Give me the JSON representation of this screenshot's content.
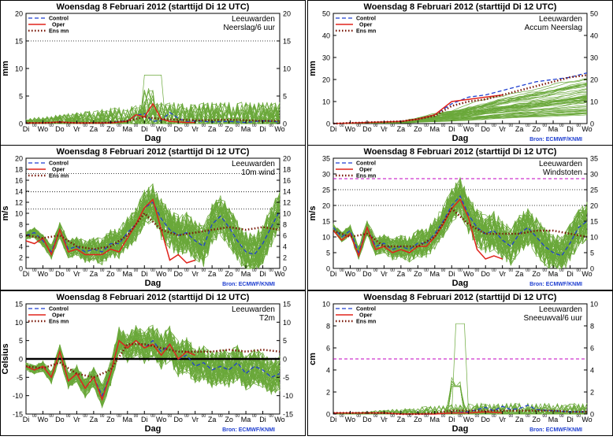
{
  "header_title": "Woensdag  8 Februari 2012  (starttijd  Di 12 UTC)",
  "days": [
    "Di",
    "Wo",
    "Do",
    "Vr",
    "Za",
    "Zo",
    "Ma",
    "Di",
    "Wo",
    "Do",
    "Vr",
    "Za",
    "Zo",
    "Ma",
    "Di",
    "Wo"
  ],
  "xlabel": "Dag",
  "credit": "Bron: ECMWF/KNMI",
  "legend": {
    "control": "Control",
    "oper": "Oper",
    "ensmn": "Ens mn"
  },
  "colors": {
    "control": "#1f3fd0",
    "oper": "#e0241c",
    "ensmn": "#7a1a0a",
    "members": "#6aa83a",
    "threshold": "#c000c0",
    "credit": "#1f3fd0"
  },
  "chart_data": [
    {
      "id": "neerslag",
      "type": "line",
      "title": "Woensdag  8 Februari 2012  (starttijd  Di 12 UTC)",
      "location": "Leeuwarden",
      "variable": "Neerslag/6 uur",
      "ylabel": "mm",
      "ylim": [
        0,
        20
      ],
      "yticks": [
        0,
        5,
        10,
        15,
        20
      ],
      "rticks": [
        0,
        5,
        10,
        15,
        20
      ],
      "dotted_lines": [
        15
      ],
      "dashed_magenta": [],
      "zero_line": false,
      "show_credit": false,
      "x_days": 15,
      "members": 50,
      "member_spread": 3,
      "member_kind": "precip",
      "member_base": 0,
      "series": [
        {
          "name": "Control",
          "x": [
            0,
            1,
            2,
            3,
            4,
            5,
            6,
            6.5,
            7,
            7.5,
            8,
            8.5,
            9,
            9.5,
            10,
            11,
            12,
            13,
            14,
            15
          ],
          "values": [
            0.1,
            0.1,
            0.3,
            0.1,
            0.1,
            0.2,
            0.5,
            1.5,
            1.8,
            0.4,
            0.6,
            2.0,
            1.0,
            0.3,
            0.5,
            0.3,
            0.4,
            0.2,
            0.5,
            0.3
          ]
        },
        {
          "name": "Oper",
          "x": [
            0,
            1,
            2,
            3,
            4,
            5,
            6,
            6.5,
            7,
            7.5,
            8,
            8.5,
            9,
            9.5,
            10
          ],
          "values": [
            0.1,
            0.1,
            0.3,
            0.1,
            0.1,
            0.1,
            0.4,
            1.6,
            1.2,
            3.6,
            0.8,
            0.4,
            0.3,
            0.2,
            0.2
          ]
        },
        {
          "name": "Ens mn",
          "x": [
            0,
            1,
            2,
            3,
            4,
            5,
            6,
            7,
            8,
            9,
            10,
            11,
            12,
            13,
            14,
            15
          ],
          "values": [
            0.1,
            0.1,
            0.2,
            0.1,
            0.1,
            0.2,
            0.5,
            1.2,
            0.8,
            0.7,
            0.6,
            0.6,
            0.7,
            0.6,
            0.5,
            0.5
          ]
        }
      ]
    },
    {
      "id": "accum",
      "type": "line",
      "title": "Woensdag  8 Februari 2012  (starttijd  Di 12 UTC)",
      "location": "Leeuwarden",
      "variable": "Accum Neerslag",
      "ylabel": "mm",
      "ylim": [
        0,
        50
      ],
      "yticks": [
        0,
        10,
        20,
        30,
        40,
        50
      ],
      "rticks": [
        0,
        10,
        20,
        30,
        40,
        50
      ],
      "dotted_lines": [],
      "dashed_magenta": [],
      "zero_line": false,
      "show_credit": true,
      "x_days": 15,
      "members": 50,
      "member_spread": 10,
      "member_kind": "accum",
      "member_base": 0,
      "series": [
        {
          "name": "Control",
          "x": [
            0,
            2,
            4,
            5,
            6,
            7,
            8,
            9,
            10,
            11,
            12,
            13,
            14,
            15
          ],
          "values": [
            0,
            0.5,
            1,
            2,
            4,
            9,
            12,
            13,
            15,
            17,
            19,
            20,
            21,
            23
          ]
        },
        {
          "name": "Oper",
          "x": [
            0,
            2,
            4,
            5,
            6,
            7,
            8,
            9,
            10
          ],
          "values": [
            0,
            0.5,
            1,
            2,
            4,
            10,
            11,
            12,
            13
          ]
        },
        {
          "name": "Ens mn",
          "x": [
            0,
            2,
            4,
            5,
            6,
            7,
            8,
            9,
            10,
            11,
            12,
            13,
            14,
            15
          ],
          "values": [
            0,
            0.5,
            1,
            2,
            3.5,
            8,
            10,
            11,
            13,
            15,
            17,
            19,
            21,
            22
          ]
        }
      ]
    },
    {
      "id": "wind",
      "type": "line",
      "title": "Woensdag  8 Februari 2012  (starttijd  Di 12 UTC)",
      "location": "Leeuwarden",
      "variable": "10m wind",
      "ylabel": "m/s",
      "ylim": [
        0,
        20
      ],
      "yticks": [
        0,
        2,
        4,
        6,
        8,
        10,
        12,
        14,
        16,
        18,
        20
      ],
      "rticks": [
        0,
        2,
        4,
        6,
        8,
        10,
        12,
        14,
        16,
        18,
        20
      ],
      "dotted_lines": [
        10.8,
        13.9,
        17.2
      ],
      "dashed_magenta": [],
      "zero_line": false,
      "show_credit": true,
      "x_days": 15,
      "members": 50,
      "member_spread": 3,
      "member_kind": "level",
      "member_base": 0,
      "series": [
        {
          "name": "Control",
          "x": [
            0,
            0.5,
            1,
            1.5,
            2,
            2.5,
            3,
            3.5,
            4,
            4.5,
            5,
            5.5,
            6,
            6.5,
            7,
            7.5,
            8,
            8.5,
            9,
            9.5,
            10,
            10.5,
            11,
            11.5,
            12,
            12.5,
            13,
            13.5,
            14,
            14.5,
            15
          ],
          "values": [
            6,
            6.5,
            5,
            3,
            7,
            3.5,
            4,
            3,
            3.5,
            3,
            4.5,
            4.5,
            6.5,
            8,
            11,
            12,
            9,
            7,
            6,
            6.5,
            5,
            4,
            8,
            9.5,
            7.5,
            5,
            3,
            2.5,
            4.5,
            7.5,
            10.5
          ]
        },
        {
          "name": "Oper",
          "x": [
            0,
            0.5,
            1,
            1.5,
            2,
            2.5,
            3,
            3.5,
            4,
            4.5,
            5,
            5.5,
            6,
            6.5,
            7,
            7.5,
            8,
            8.5,
            9,
            9.5,
            10
          ],
          "values": [
            5,
            4.5,
            5.5,
            2.5,
            7,
            3,
            3.5,
            2.5,
            2.5,
            2.5,
            3.5,
            3,
            5.5,
            8,
            11,
            12.5,
            7,
            1.5,
            2.5,
            1,
            1.5
          ]
        },
        {
          "name": "Ens mn",
          "x": [
            0,
            1,
            2,
            3,
            4,
            5,
            6,
            7,
            8,
            9,
            10,
            11,
            12,
            13,
            14,
            15
          ],
          "values": [
            6,
            5.5,
            6,
            4,
            3.5,
            4,
            6,
            10,
            7,
            6,
            6.5,
            7,
            7.5,
            7,
            7.5,
            7
          ]
        }
      ]
    },
    {
      "id": "windstoten",
      "type": "line",
      "title": "Woensdag  8 Februari 2012  (starttijd  Di 12 UTC)",
      "location": "Leeuwarden",
      "variable": "Windstoten",
      "ylabel": "m/s",
      "ylim": [
        0,
        35
      ],
      "yticks": [
        0,
        5,
        10,
        15,
        20,
        25,
        30,
        35
      ],
      "rticks": [
        0,
        5,
        10,
        15,
        20,
        25,
        30,
        35
      ],
      "dotted_lines": [
        20,
        25
      ],
      "dashed_magenta": [
        28.5
      ],
      "zero_line": false,
      "show_credit": true,
      "x_days": 15,
      "members": 50,
      "member_spread": 5,
      "member_kind": "level",
      "member_base": 0,
      "series": [
        {
          "name": "Control",
          "x": [
            0,
            0.5,
            1,
            1.5,
            2,
            2.5,
            3,
            3.5,
            4,
            4.5,
            5,
            5.5,
            6,
            6.5,
            7,
            7.5,
            8,
            8.5,
            9,
            9.5,
            10,
            10.5,
            11,
            11.5,
            12,
            12.5,
            13,
            13.5,
            14,
            14.5,
            15
          ],
          "values": [
            13,
            10,
            12,
            5,
            13,
            7,
            8,
            6,
            7,
            6,
            8,
            8,
            11,
            15,
            20,
            23,
            17,
            13,
            11,
            12,
            9,
            7,
            11,
            13,
            10,
            7,
            5,
            4,
            8,
            13,
            15
          ]
        },
        {
          "name": "Oper",
          "x": [
            0,
            0.5,
            1,
            1.5,
            2,
            2.5,
            3,
            3.5,
            4,
            4.5,
            5,
            5.5,
            6,
            6.5,
            7,
            7.5,
            8,
            8.5,
            9,
            9.5,
            10
          ],
          "values": [
            12,
            9,
            11,
            4,
            13,
            6,
            7,
            5,
            6,
            5,
            7,
            7,
            10,
            14,
            19,
            22,
            16,
            6,
            3,
            4,
            3
          ]
        },
        {
          "name": "Ens mn",
          "x": [
            0,
            1,
            2,
            3,
            4,
            5,
            6,
            7,
            8,
            9,
            10,
            11,
            12,
            13,
            14,
            15
          ],
          "values": [
            12,
            10,
            11,
            7,
            7,
            7,
            10,
            19,
            14,
            11,
            11,
            11,
            12,
            12,
            11,
            10
          ]
        }
      ]
    },
    {
      "id": "t2m",
      "type": "line",
      "title": "Woensdag  8 Februari 2012  (starttijd  Di 12 UTC)",
      "location": "Leeuwarden",
      "variable": "T2m",
      "ylabel": "Celsius",
      "ylim": [
        -15,
        15
      ],
      "yticks": [
        -15,
        -10,
        -5,
        0,
        5,
        10,
        15
      ],
      "rticks": [
        -15,
        -10,
        -5,
        0,
        5,
        10,
        15
      ],
      "dotted_lines": [],
      "dashed_magenta": [],
      "zero_line": true,
      "show_credit": true,
      "x_days": 15,
      "members": 50,
      "member_spread": 4,
      "member_kind": "level",
      "member_base": 0,
      "series": [
        {
          "name": "Control",
          "x": [
            0,
            0.5,
            1,
            1.5,
            2,
            2.5,
            3,
            3.5,
            4,
            4.5,
            5,
            5.5,
            6,
            6.5,
            7,
            7.5,
            8,
            8.5,
            9,
            9.5,
            10,
            10.5,
            11,
            11.5,
            12,
            12.5,
            13,
            13.5,
            14,
            14.5,
            15
          ],
          "values": [
            -2,
            -3,
            -2,
            -5,
            2,
            -6,
            -4,
            -8,
            -5,
            -10,
            -4,
            5,
            3,
            5,
            3,
            5,
            2,
            4,
            0,
            1,
            -2,
            -1,
            -3,
            -2,
            -3,
            -1,
            -4,
            -2,
            -3,
            -5,
            -4
          ]
        },
        {
          "name": "Oper",
          "x": [
            0,
            0.5,
            1,
            1.5,
            2,
            2.5,
            3,
            3.5,
            4,
            4.5,
            5,
            5.5,
            6,
            6.5,
            7,
            7.5,
            8,
            8.5,
            9,
            9.5,
            10
          ],
          "values": [
            -2,
            -3,
            -2,
            -5,
            2,
            -6,
            -4,
            -8,
            -5,
            -11,
            -4,
            5,
            3,
            5,
            3,
            4,
            1,
            4,
            0,
            2,
            1
          ]
        },
        {
          "name": "Ens mn",
          "x": [
            0,
            1,
            2,
            3,
            4,
            5,
            6,
            7,
            8,
            9,
            10,
            11,
            12,
            13,
            14,
            15
          ],
          "values": [
            -2,
            -2.5,
            -1,
            -4,
            -5,
            -3,
            4,
            4,
            3,
            2,
            2,
            2,
            2.5,
            2,
            2.5,
            2
          ]
        }
      ]
    },
    {
      "id": "sneeuw",
      "type": "line",
      "title": "Woensdag  8 Februari 2012  (starttijd  Di 12 UTC)",
      "location": "Leeuwarden",
      "variable": "Sneeuwval/6 uur",
      "ylabel": "cm",
      "ylim": [
        0,
        10
      ],
      "yticks": [
        0,
        2,
        4,
        6,
        8,
        10
      ],
      "rticks": [
        0,
        2,
        4,
        6,
        8,
        10
      ],
      "dotted_lines": [],
      "dashed_magenta": [
        5
      ],
      "zero_line": false,
      "show_credit": true,
      "x_days": 15,
      "members": 50,
      "member_spread": 1,
      "member_kind": "snow",
      "member_base": 0,
      "series": [
        {
          "name": "Control",
          "x": [
            0,
            1,
            2,
            3,
            4,
            5,
            6,
            7,
            8,
            9,
            9.5,
            10,
            10.5,
            11,
            11.5,
            12,
            13,
            14,
            15
          ],
          "values": [
            0.1,
            0.1,
            0.1,
            0.1,
            0,
            0,
            0,
            0.1,
            0.2,
            0.6,
            0.3,
            0.7,
            0.4,
            0.5,
            0.8,
            0.4,
            0.3,
            0.2,
            0.2
          ]
        },
        {
          "name": "Oper",
          "x": [
            0,
            1,
            2,
            3,
            4,
            5,
            6,
            7,
            8,
            9,
            10
          ],
          "values": [
            0.1,
            0.1,
            0.1,
            0.1,
            0,
            0,
            0,
            0.1,
            0.1,
            0.2,
            0.1
          ]
        },
        {
          "name": "Ens mn",
          "x": [
            0,
            1,
            2,
            3,
            4,
            5,
            6,
            7,
            8,
            9,
            10,
            11,
            12,
            13,
            14,
            15
          ],
          "values": [
            0.1,
            0.1,
            0.1,
            0.1,
            0,
            0,
            0.1,
            0.3,
            0.3,
            0.3,
            0.3,
            0.3,
            0.3,
            0.3,
            0.2,
            0.2
          ]
        }
      ]
    }
  ]
}
